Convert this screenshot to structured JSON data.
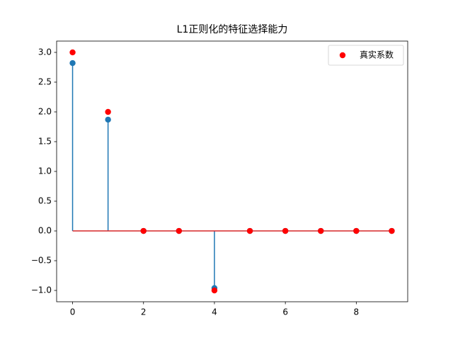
{
  "chart_data": {
    "type": "stem",
    "title": "L1正则化的特征选择能力",
    "x": [
      0,
      1,
      2,
      3,
      4,
      5,
      6,
      7,
      8,
      9
    ],
    "series": [
      {
        "type": "stem",
        "color": "#1f77b4",
        "values": [
          2.82,
          1.87,
          0,
          0,
          -0.96,
          0,
          0,
          0,
          0,
          0
        ]
      },
      {
        "type": "scatter",
        "name": "真实系数",
        "color": "#ff0000",
        "values": [
          3,
          2,
          0,
          0,
          -1,
          0,
          0,
          0,
          0,
          0
        ]
      }
    ],
    "baseline_color": "#d62728",
    "xlim": [
      -0.45,
      9.45
    ],
    "ylim": [
      -1.19,
      3.19
    ],
    "xticks": [
      0,
      2,
      4,
      6,
      8
    ],
    "yticks": [
      {
        "value": -1,
        "label": "−1.0"
      },
      {
        "value": -0.5,
        "label": "−0.5"
      },
      {
        "value": 0,
        "label": "0.0"
      },
      {
        "value": 0.5,
        "label": "0.5"
      },
      {
        "value": 1,
        "label": "1.0"
      },
      {
        "value": 1.5,
        "label": "1.5"
      },
      {
        "value": 2,
        "label": "2.0"
      },
      {
        "value": 2.5,
        "label": "2.5"
      },
      {
        "value": 3,
        "label": "3.0"
      }
    ],
    "legend": "upper right"
  }
}
